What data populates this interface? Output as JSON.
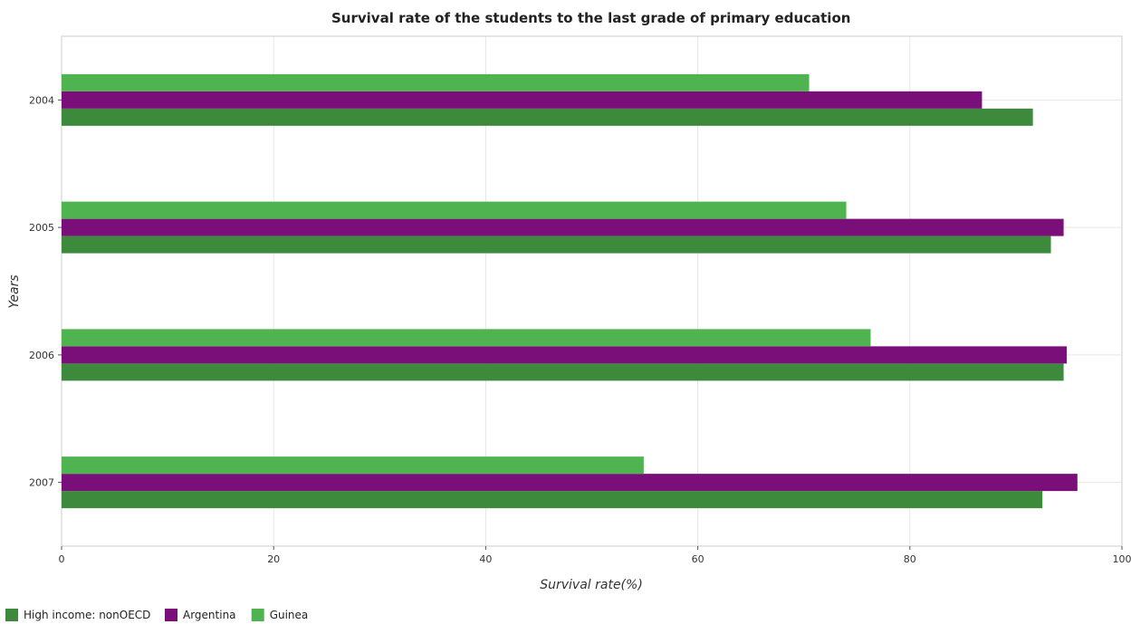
{
  "chart_data": {
    "type": "bar",
    "orientation": "horizontal",
    "title": "Survival rate of the students to the last grade of primary education",
    "xlabel": "Survival rate(%)",
    "ylabel": "Years",
    "categories": [
      "2004",
      "2005",
      "2006",
      "2007"
    ],
    "xlim": [
      0,
      100
    ],
    "xticks": [
      0,
      20,
      40,
      60,
      80,
      100
    ],
    "grid": true,
    "legend_position": "bottom-left",
    "series": [
      {
        "name": "High income: nonOECD",
        "color": "#3d8a3d",
        "values": [
          91.6,
          93.3,
          94.5,
          92.5
        ]
      },
      {
        "name": "Argentina",
        "color": "#7a0f7a",
        "values": [
          86.8,
          94.5,
          94.8,
          95.8
        ]
      },
      {
        "name": "Guinea",
        "color": "#4fb34f",
        "values": [
          70.5,
          74.0,
          76.3,
          54.9
        ]
      }
    ]
  }
}
